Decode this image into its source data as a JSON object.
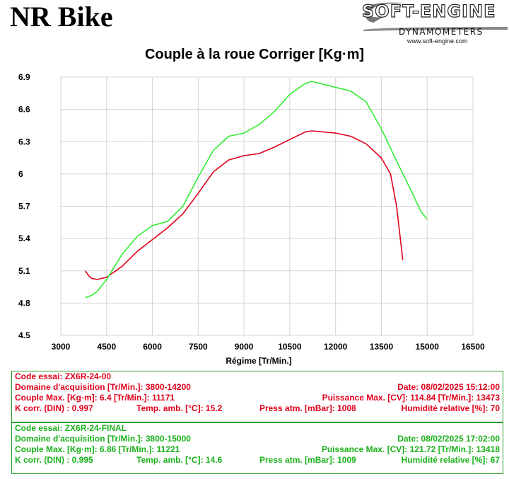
{
  "header": {
    "brand": "NR Bike",
    "logo_main": "SOFT-ENGINE",
    "logo_sub": "DYNAMOMETERS",
    "logo_url": "www.soft-engine.com"
  },
  "chart_data": {
    "type": "line",
    "title": "Couple à la roue Corriger [Kg·m]",
    "xlabel": "Régime [Tr/Min.]",
    "ylabel": "",
    "xlim": [
      3000,
      16500
    ],
    "ylim": [
      4.5,
      6.9
    ],
    "x_ticks": [
      "3000",
      "4500",
      "6000",
      "7500",
      "9000",
      "10500",
      "12000",
      "13500",
      "15000",
      "16500"
    ],
    "y_ticks": [
      "4.5",
      "4.8",
      "5.1",
      "5.4",
      "5.7",
      "6",
      "6.3",
      "6.6",
      "6.9"
    ],
    "grid": true,
    "series": [
      {
        "color": "#e0001b",
        "points": [
          [
            3800,
            5.1
          ],
          [
            3900,
            5.06
          ],
          [
            4000,
            5.03
          ],
          [
            4200,
            5.02
          ],
          [
            4500,
            5.04
          ],
          [
            5000,
            5.14
          ],
          [
            5500,
            5.28
          ],
          [
            6000,
            5.39
          ],
          [
            6500,
            5.5
          ],
          [
            7000,
            5.63
          ],
          [
            7500,
            5.82
          ],
          [
            8000,
            6.02
          ],
          [
            8500,
            6.13
          ],
          [
            9000,
            6.17
          ],
          [
            9500,
            6.19
          ],
          [
            10000,
            6.25
          ],
          [
            10500,
            6.32
          ],
          [
            11000,
            6.39
          ],
          [
            11221,
            6.4
          ],
          [
            12000,
            6.38
          ],
          [
            12500,
            6.35
          ],
          [
            13000,
            6.28
          ],
          [
            13500,
            6.15
          ],
          [
            13800,
            6.0
          ],
          [
            14000,
            5.7
          ],
          [
            14100,
            5.45
          ],
          [
            14200,
            5.2
          ]
        ]
      },
      {
        "color": "#33ee33",
        "points": [
          [
            3800,
            4.85
          ],
          [
            4000,
            4.87
          ],
          [
            4200,
            4.91
          ],
          [
            4500,
            5.02
          ],
          [
            5000,
            5.25
          ],
          [
            5500,
            5.42
          ],
          [
            6000,
            5.52
          ],
          [
            6500,
            5.56
          ],
          [
            7000,
            5.7
          ],
          [
            7500,
            5.97
          ],
          [
            8000,
            6.22
          ],
          [
            8500,
            6.35
          ],
          [
            9000,
            6.38
          ],
          [
            9500,
            6.46
          ],
          [
            10000,
            6.58
          ],
          [
            10500,
            6.74
          ],
          [
            11000,
            6.84
          ],
          [
            11221,
            6.86
          ],
          [
            11800,
            6.82
          ],
          [
            12500,
            6.77
          ],
          [
            13000,
            6.67
          ],
          [
            13500,
            6.42
          ],
          [
            14000,
            6.12
          ],
          [
            14500,
            5.83
          ],
          [
            14800,
            5.65
          ],
          [
            15000,
            5.58
          ]
        ]
      }
    ]
  },
  "records": [
    {
      "code": "Code essai: ZX6R-24-00",
      "domaine": "Domaine d'acquisition [Tr/Min.]: 3800-14200",
      "date": "Date: 08/02/2025   15:12:00",
      "couple": "Couple Max. [Kg·m]: 6.4   [Tr/Min.]: 11171",
      "puissance": "Puissance Max. [CV]: 114.84   [Tr/Min.]: 13473",
      "kcorr": "K corr. (DIN) : 0.997",
      "temp": "Temp. amb. [°C]: 15.2",
      "press": "Press atm. [mBar]: 1008",
      "humid": "Humidité relative [%]: 70"
    },
    {
      "code": "Code essai: ZX6R-24-FINAL",
      "domaine": "Domaine d'acquisition [Tr/Min.]: 3800-15000",
      "date": "Date: 08/02/2025   17:02:00",
      "couple": "Couple Max. [Kg·m]: 6.86   [Tr/Min.]: 11221",
      "puissance": "Puissance Max. [CV]: 121.72   [Tr/Min.]: 13418",
      "kcorr": "K corr. (DIN) : 0.995",
      "temp": "Temp. amb. [°C]: 14.6",
      "press": "Press atm. [mBar]: 1009",
      "humid": "Humidité relative [%]: 67"
    }
  ]
}
